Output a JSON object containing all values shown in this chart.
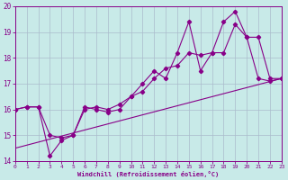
{
  "xlabel": "Windchill (Refroidissement éolien,°C)",
  "bg_color": "#c8eae8",
  "line_color": "#880088",
  "grid_color": "#aabbcc",
  "xlim": [
    0,
    23
  ],
  "ylim": [
    14,
    20
  ],
  "xticks": [
    0,
    1,
    2,
    3,
    4,
    5,
    6,
    7,
    8,
    9,
    10,
    11,
    12,
    13,
    14,
    15,
    16,
    17,
    18,
    19,
    20,
    21,
    22,
    23
  ],
  "yticks": [
    14,
    15,
    16,
    17,
    18,
    19,
    20
  ],
  "line1_x": [
    0,
    1,
    2,
    3,
    4,
    5,
    6,
    7,
    8,
    9,
    10,
    11,
    12,
    13,
    14,
    15,
    16,
    17,
    18,
    19,
    20,
    21,
    22,
    23
  ],
  "line1_y": [
    16.0,
    16.1,
    16.1,
    14.2,
    14.8,
    15.0,
    16.1,
    16.0,
    15.9,
    16.0,
    16.5,
    17.0,
    17.5,
    17.2,
    18.2,
    19.4,
    17.5,
    18.2,
    19.4,
    19.8,
    18.8,
    17.2,
    17.1,
    17.2
  ],
  "line2_x": [
    0,
    1,
    2,
    3,
    4,
    5,
    6,
    7,
    8,
    9,
    10,
    11,
    12,
    13,
    14,
    15,
    16,
    17,
    18,
    19,
    20,
    21,
    22,
    23
  ],
  "line2_y": [
    16.0,
    16.1,
    16.1,
    15.0,
    14.9,
    15.0,
    16.0,
    16.1,
    16.0,
    16.2,
    16.5,
    16.7,
    17.2,
    17.6,
    17.7,
    18.2,
    18.1,
    18.2,
    18.2,
    19.3,
    18.8,
    18.8,
    17.2,
    17.2
  ],
  "line3_x": [
    0,
    23
  ],
  "line3_y": [
    14.5,
    17.2
  ]
}
